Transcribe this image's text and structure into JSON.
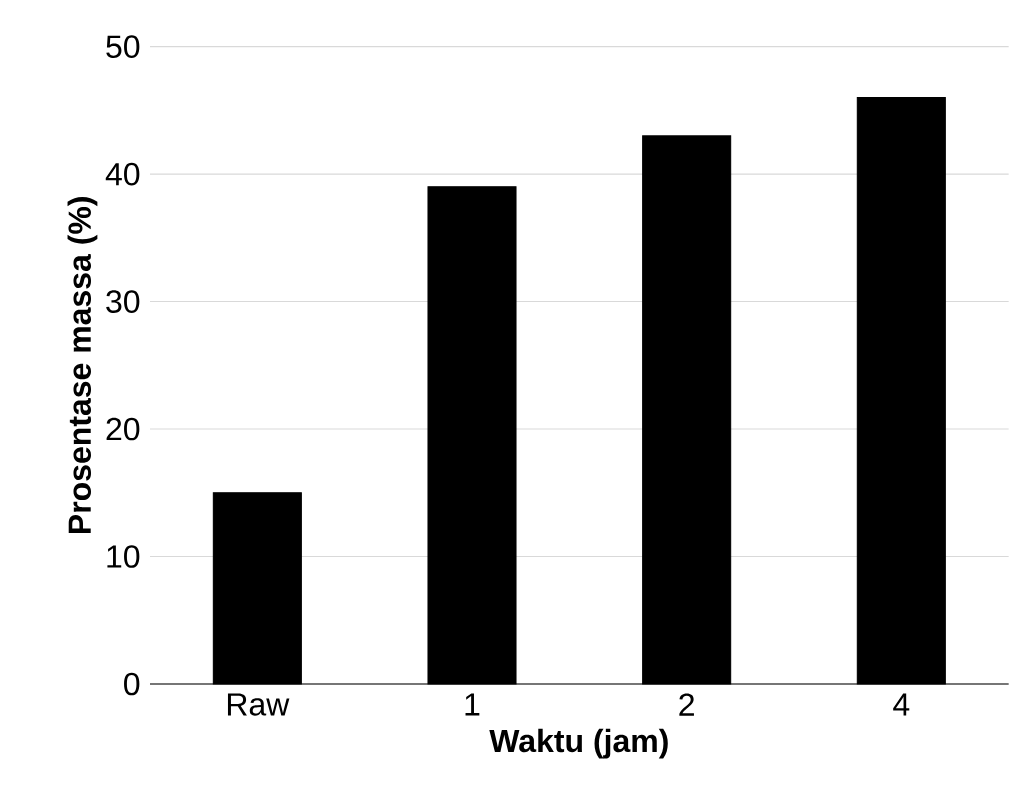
{
  "chart_data": {
    "type": "bar",
    "xlabel": "Waktu (jam)",
    "ylabel": "Prosentase massa (%)",
    "categories": [
      "Raw",
      "1",
      "2",
      "4"
    ],
    "values": [
      15,
      39,
      43,
      46
    ],
    "color": "#000000",
    "ylim": [
      0,
      50
    ],
    "yticks": [
      0,
      10,
      20,
      30,
      40,
      50
    ],
    "grid": "y"
  }
}
